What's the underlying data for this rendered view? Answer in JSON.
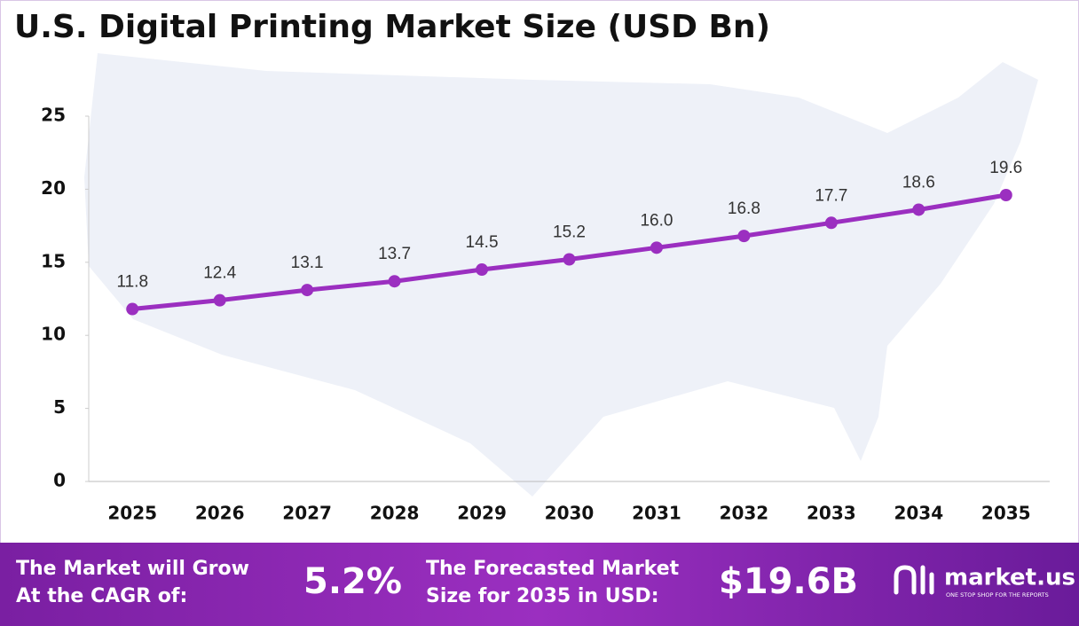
{
  "chart_data": {
    "type": "line",
    "title": "U.S. Digital Printing Market Size (USD Bn)",
    "categories": [
      "2025",
      "2026",
      "2027",
      "2028",
      "2029",
      "2030",
      "2031",
      "2032",
      "2033",
      "2034",
      "2035"
    ],
    "series": [
      {
        "name": "Market Size",
        "color": "#9b2fc0",
        "values": [
          11.8,
          12.4,
          13.1,
          13.7,
          14.5,
          15.2,
          16.0,
          16.8,
          17.7,
          18.6,
          19.6
        ],
        "value_labels": [
          "11.8",
          "12.4",
          "13.1",
          "13.7",
          "14.5",
          "15.2",
          "16.0",
          "16.8",
          "17.7",
          "18.6",
          "19.6"
        ]
      }
    ],
    "ylim": [
      0,
      25
    ],
    "yticks": [
      0,
      5,
      10,
      15,
      20,
      25
    ],
    "grid": false
  },
  "footer": {
    "cagr_label": [
      "The Market will Grow",
      "At the CAGR of:"
    ],
    "cagr_value": "5.2%",
    "forecast_label": [
      "The Forecasted Market",
      "Size for 2035 in USD:"
    ],
    "forecast_value": "$19.6B",
    "logo": "market.us",
    "tagline": "ONE STOP SHOP FOR THE REPORTS"
  }
}
